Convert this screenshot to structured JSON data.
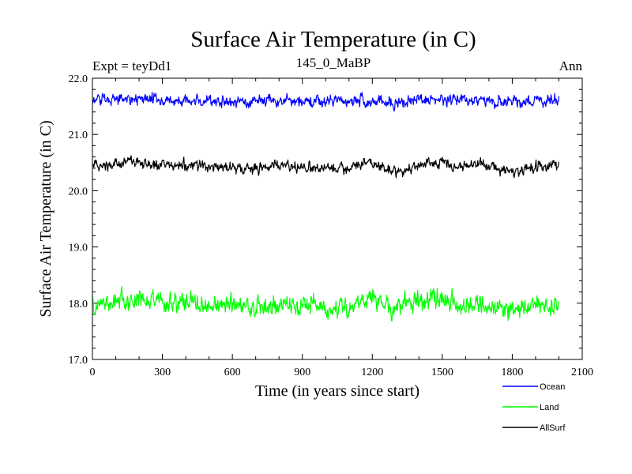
{
  "chart_data": {
    "type": "line",
    "title": "Surface Air Temperature (in C)",
    "header_left": "Expt = teyDd1",
    "header_center": "145_0_MaBP",
    "header_right": "Ann",
    "xlabel": "Time (in years since start)",
    "ylabel": "Surface Air Temperature (in C)",
    "xlim": [
      0,
      2100
    ],
    "ylim": [
      17.0,
      22.0
    ],
    "x_ticks": [
      0,
      300,
      600,
      900,
      1200,
      1500,
      1800,
      2100
    ],
    "x_tick_labels": [
      "0",
      "300",
      "600",
      "900",
      "1200",
      "1500",
      "1800",
      "2100"
    ],
    "y_ticks": [
      17.0,
      18.0,
      19.0,
      20.0,
      21.0,
      22.0
    ],
    "y_tick_labels": [
      "17.0",
      "18.0",
      "19.0",
      "20.0",
      "21.0",
      "22.0"
    ],
    "x_range_years": [
      0,
      2000
    ],
    "legend_position": "below-right",
    "series": [
      {
        "name": "Ocean",
        "color": "#0000ff",
        "x_step": 100,
        "x": [
          0,
          100,
          200,
          300,
          400,
          500,
          600,
          700,
          800,
          900,
          1000,
          1100,
          1200,
          1300,
          1400,
          1500,
          1600,
          1700,
          1800,
          1900,
          2000
        ],
        "values": [
          21.6,
          21.65,
          21.62,
          21.6,
          21.58,
          21.6,
          21.57,
          21.6,
          21.6,
          21.57,
          21.58,
          21.6,
          21.62,
          21.55,
          21.62,
          21.6,
          21.62,
          21.6,
          21.57,
          21.6,
          21.62
        ],
        "noise_amplitude": 0.13
      },
      {
        "name": "Land",
        "color": "#00ff00",
        "x_step": 100,
        "x": [
          0,
          100,
          200,
          300,
          400,
          500,
          600,
          700,
          800,
          900,
          1000,
          1100,
          1200,
          1300,
          1400,
          1500,
          1600,
          1700,
          1800,
          1900,
          2000
        ],
        "values": [
          17.95,
          18.05,
          18.05,
          18.0,
          18.0,
          17.95,
          17.95,
          17.95,
          17.95,
          18.0,
          17.95,
          17.95,
          18.1,
          17.9,
          18.05,
          18.1,
          17.95,
          17.95,
          17.85,
          17.95,
          17.95
        ],
        "noise_amplitude": 0.22
      },
      {
        "name": "AllSurf",
        "color": "#000000",
        "x_step": 100,
        "x": [
          0,
          100,
          200,
          300,
          400,
          500,
          600,
          700,
          800,
          900,
          1000,
          1100,
          1200,
          1300,
          1400,
          1500,
          1600,
          1700,
          1800,
          1900,
          2000
        ],
        "values": [
          20.45,
          20.5,
          20.5,
          20.45,
          20.45,
          20.45,
          20.4,
          20.4,
          20.45,
          20.4,
          20.4,
          20.4,
          20.5,
          20.35,
          20.45,
          20.5,
          20.45,
          20.45,
          20.35,
          20.4,
          20.45
        ],
        "noise_amplitude": 0.12
      }
    ]
  }
}
